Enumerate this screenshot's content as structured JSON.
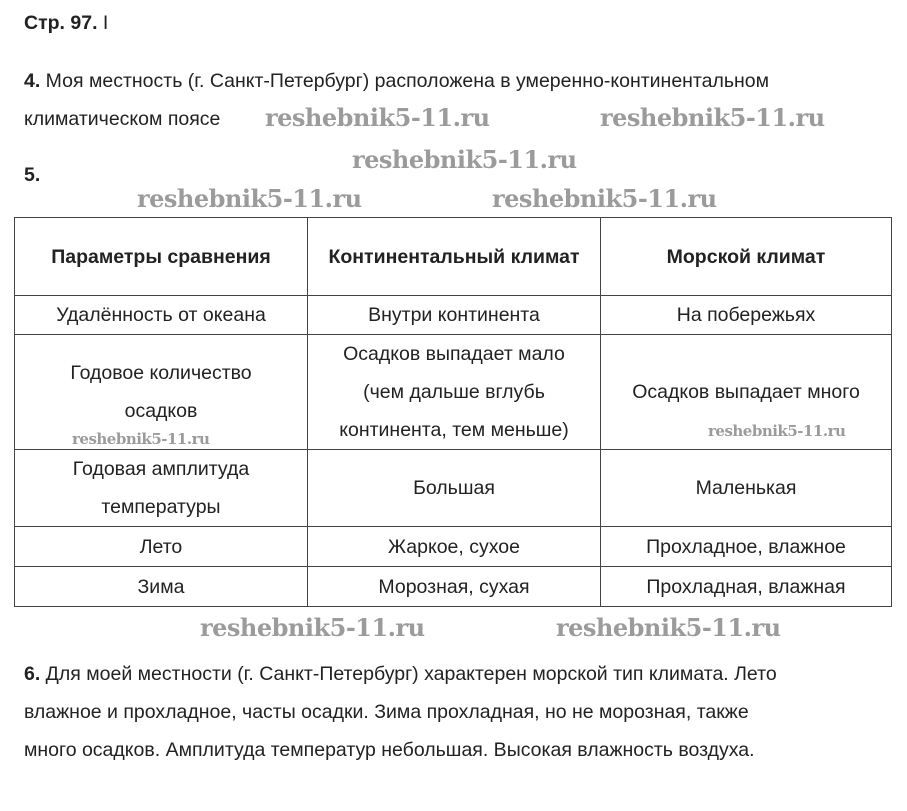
{
  "header": {
    "page_label": "Стр. 97.",
    "cursor_glyph": "I"
  },
  "task4": {
    "num": "4.",
    "line1": " Моя местность (г. Санкт-Петербург) расположена в умеренно-континентальном",
    "line2": "климатическом поясе"
  },
  "task5": {
    "num": "5."
  },
  "table": {
    "headers": [
      "Параметры сравнения",
      "Континентальный климат",
      "Морской климат"
    ],
    "rows": [
      [
        "Удалённость от океана",
        "Внутри континента",
        "На побережьях"
      ],
      [
        "Годовое количество осадков",
        "Осадков выпадает мало (чем дальше вглубь континента, тем меньше)",
        "Осадков выпадает много"
      ],
      [
        "Годовая амплитуда температуры",
        "Большая",
        "Маленькая"
      ],
      [
        "Лето",
        "Жаркое, сухое",
        "Прохладное, влажное"
      ],
      [
        "Зима",
        "Морозная, сухая",
        "Прохладная, влажная"
      ]
    ]
  },
  "task6": {
    "num": "6.",
    "line1": " Для моей местности (г. Санкт-Петербург) характерен морской тип климата. Лето",
    "line2": "влажное и прохладное, часты осадки. Зима прохладная, но не морозная, также",
    "line3": "много осадков. Амплитуда температур небольшая. Высокая влажность воздуха."
  },
  "watermark": "reshebnik5-11.ru"
}
